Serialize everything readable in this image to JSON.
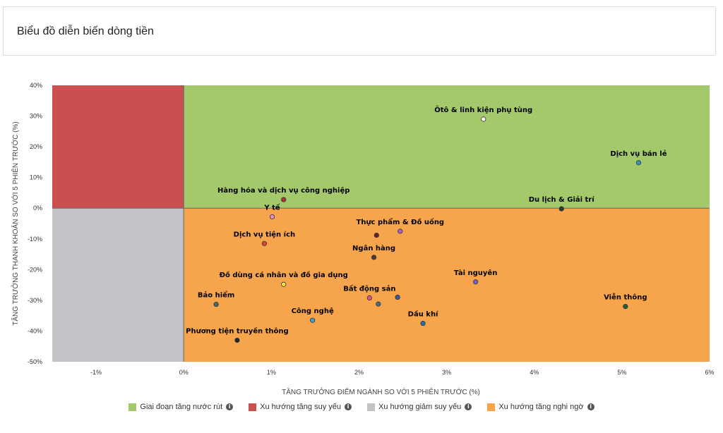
{
  "header": {
    "title": "Biểu đồ diễn biến dòng tiền"
  },
  "chart_data": {
    "type": "scatter",
    "title": "Biểu đồ diễn biến dòng tiền",
    "xlabel": "TĂNG TRƯỞNG ĐIỂM NGÀNH SO VỚI 5 PHIÊN TRƯỚC (%)",
    "ylabel": "TĂNG TRƯỞNG THANH KHOẢN SO VỚI 5 PHIÊN TRƯỚC (%)",
    "xlim": [
      -1.5,
      6
    ],
    "ylim": [
      -50,
      40
    ],
    "xticks": [
      {
        "value": -1,
        "label": "-1%"
      },
      {
        "value": 0,
        "label": "0%"
      },
      {
        "value": 1,
        "label": "1%"
      },
      {
        "value": 2,
        "label": "2%"
      },
      {
        "value": 3,
        "label": "3%"
      },
      {
        "value": 4,
        "label": "4%"
      },
      {
        "value": 5,
        "label": "5%"
      },
      {
        "value": 6,
        "label": "6%"
      }
    ],
    "yticks": [
      {
        "value": 40,
        "label": "40%"
      },
      {
        "value": 30,
        "label": "30%"
      },
      {
        "value": 20,
        "label": "20%"
      },
      {
        "value": 10,
        "label": "10%"
      },
      {
        "value": 0,
        "label": "0%"
      },
      {
        "value": -10,
        "label": "-10%"
      },
      {
        "value": -20,
        "label": "-20%"
      },
      {
        "value": -30,
        "label": "-30%"
      },
      {
        "value": -40,
        "label": "-40%"
      },
      {
        "value": -50,
        "label": "-50%"
      }
    ],
    "quadrants": [
      {
        "name": "Giai đoạn tăng nước rút",
        "color": "#a3c96b",
        "x": [
          0,
          6
        ],
        "y": [
          0,
          40
        ]
      },
      {
        "name": "Xu hướng tăng suy yếu",
        "color": "#c9504f",
        "x": [
          -1.5,
          0
        ],
        "y": [
          0,
          40
        ]
      },
      {
        "name": "Xu hướng giảm suy yếu",
        "color": "#c2c3c6",
        "x": [
          -1.5,
          0
        ],
        "y": [
          -50,
          0
        ]
      },
      {
        "name": "Xu hướng tăng nghi ngờ",
        "color": "#f6a54d",
        "x": [
          0,
          6
        ],
        "y": [
          -50,
          0
        ]
      }
    ],
    "points": [
      {
        "label": "Ôtô & linh kiện phụ tùng",
        "x": 3.42,
        "y": 29.0,
        "color": "#ffffff"
      },
      {
        "label": "Dịch vụ bán lẻ",
        "x": 5.19,
        "y": 14.8,
        "color": "#3e8fc4"
      },
      {
        "label": "Hàng hóa và dịch vụ công nghiệp",
        "x": 1.14,
        "y": 2.8,
        "color": "#b3303a"
      },
      {
        "label": "Y tế",
        "x": 1.01,
        "y": -2.8,
        "color": "#e58fc8"
      },
      {
        "label": "Du lịch & Giải trí",
        "x": 4.31,
        "y": -0.2,
        "color": "#2b3a2b"
      },
      {
        "label": "Thực phẩm & Đồ uống",
        "x": 2.47,
        "y": -7.5,
        "color": "#a45ed6"
      },
      {
        "label": "",
        "x": 2.2,
        "y": -8.8,
        "color": "#6b1f2a"
      },
      {
        "label": "Dịch vụ tiện ích",
        "x": 0.92,
        "y": -11.5,
        "color": "#d9462e"
      },
      {
        "label": "Ngân hàng",
        "x": 2.17,
        "y": -16.0,
        "color": "#4a3a48"
      },
      {
        "label": "Đồ dùng cá nhân và đồ gia dụng",
        "x": 1.14,
        "y": -24.8,
        "color": "#f3e53c"
      },
      {
        "label": "Tài nguyên",
        "x": 3.33,
        "y": -24.0,
        "color": "#7462d1"
      },
      {
        "label": "Bảo hiểm",
        "x": 0.37,
        "y": -31.3,
        "color": "#3e6b6e"
      },
      {
        "label": "Bất động sản",
        "x": 2.12,
        "y": -29.2,
        "color": "#e84f8c"
      },
      {
        "label": "",
        "x": 2.22,
        "y": -31.2,
        "color": "#4f6f7c"
      },
      {
        "label": "",
        "x": 2.44,
        "y": -29.0,
        "color": "#3e58a0"
      },
      {
        "label": "Viễn thông",
        "x": 5.04,
        "y": -32.0,
        "color": "#2a5c3a"
      },
      {
        "label": "Công nghệ",
        "x": 1.47,
        "y": -36.5,
        "color": "#3aa3d6"
      },
      {
        "label": "Dầu khí",
        "x": 2.73,
        "y": -37.5,
        "color": "#2e6da4"
      },
      {
        "label": "Phương tiện truyền thông",
        "x": 0.61,
        "y": -43.0,
        "color": "#262626"
      }
    ]
  },
  "legend": [
    {
      "label": "Giai đoạn tăng nước rút",
      "color": "#a3c96b",
      "icon": "info-icon"
    },
    {
      "label": "Xu hướng tăng suy yếu",
      "color": "#c9504f",
      "icon": "info-icon"
    },
    {
      "label": "Xu hướng giảm suy yếu",
      "color": "#c2c3c6",
      "icon": "info-icon"
    },
    {
      "label": "Xu hướng tăng nghi ngờ",
      "color": "#f6a54d",
      "icon": "info-icon"
    }
  ],
  "info_glyph": "i"
}
